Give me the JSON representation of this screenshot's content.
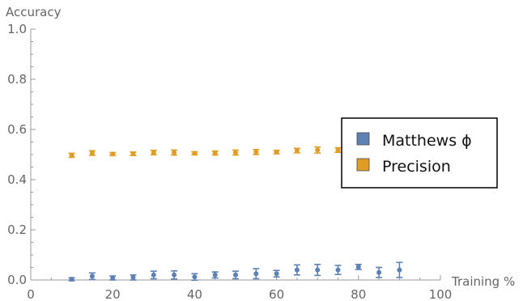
{
  "chart_data": {
    "type": "scatter",
    "xlabel": "Training %",
    "ylabel": "Accuracy",
    "xlim": [
      0,
      100
    ],
    "ylim": [
      0,
      1.0
    ],
    "x_ticks": [
      0,
      20,
      40,
      60,
      80,
      100
    ],
    "x_tick_labels": [
      "0",
      "20",
      "40",
      "60",
      "80",
      "100"
    ],
    "y_ticks": [
      0,
      0.2,
      0.4,
      0.6,
      0.8,
      1.0
    ],
    "y_tick_labels": [
      "0.0",
      "0.2",
      "0.4",
      "0.6",
      "0.8",
      "1.0"
    ],
    "legend_position": "right",
    "error_bars": true,
    "series": [
      {
        "name": "Matthews ϕ",
        "color": "#5e81b5",
        "x": [
          10,
          15,
          20,
          25,
          30,
          35,
          40,
          45,
          50,
          55,
          60,
          65,
          70,
          75,
          80,
          85,
          90
        ],
        "y": [
          0.003,
          0.015,
          0.008,
          0.01,
          0.02,
          0.02,
          0.012,
          0.02,
          0.02,
          0.025,
          0.025,
          0.04,
          0.04,
          0.04,
          0.052,
          0.03,
          0.04
        ],
        "err": [
          0.006,
          0.013,
          0.008,
          0.01,
          0.015,
          0.016,
          0.013,
          0.012,
          0.015,
          0.02,
          0.013,
          0.02,
          0.022,
          0.018,
          0.01,
          0.02,
          0.03
        ]
      },
      {
        "name": "Precision",
        "color": "#e19c24",
        "x": [
          10,
          15,
          20,
          25,
          30,
          35,
          40,
          45,
          50,
          55,
          60,
          65,
          70,
          75,
          80,
          85,
          90
        ],
        "y": [
          0.497,
          0.506,
          0.502,
          0.503,
          0.508,
          0.508,
          0.505,
          0.506,
          0.508,
          0.51,
          0.51,
          0.516,
          0.518,
          0.518,
          0.522,
          0.513,
          0.516
        ],
        "err": [
          0.008,
          0.009,
          0.006,
          0.007,
          0.009,
          0.01,
          0.006,
          0.008,
          0.01,
          0.01,
          0.007,
          0.009,
          0.012,
          0.009,
          0.008,
          0.008,
          0.018
        ]
      }
    ]
  }
}
